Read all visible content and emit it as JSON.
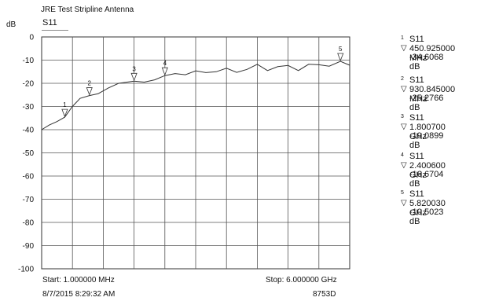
{
  "header": {
    "title": "JRE Test Stripline Antenna",
    "trace": "S11",
    "unit": "dB"
  },
  "footer": {
    "start": "Start: 1.000000 MHz",
    "stop": "Stop: 6.000000 GHz",
    "datetime": "8/7/2015 8:29:32 AM",
    "instrument": "8753D"
  },
  "markers": [
    {
      "num": "1",
      "trace": "S11",
      "freq": "450.925000 MHz",
      "value": "-34.6068 dB"
    },
    {
      "num": "2",
      "trace": "S11",
      "freq": "930.845000 MHz",
      "value": "-25.2766 dB"
    },
    {
      "num": "3",
      "trace": "S11",
      "freq": "1.800700 GHz",
      "value": "-19.0899 dB"
    },
    {
      "num": "4",
      "trace": "S11",
      "freq": "2.400600 GHz",
      "value": "-16.6704 dB"
    },
    {
      "num": "5",
      "trace": "S11",
      "freq": "5.820030 GHz",
      "value": "-10.5023 dB"
    }
  ],
  "chart_data": {
    "type": "line",
    "title": "JRE Test Stripline Antenna",
    "ylabel": "dB",
    "xlim": [
      0.001,
      6.0
    ],
    "ylim": [
      -100,
      0
    ],
    "x_unit": "GHz",
    "yticks": [
      "0",
      "-10",
      "-20",
      "-30",
      "-40",
      "-50",
      "-60",
      "-70",
      "-80",
      "-90",
      "-100"
    ],
    "grid": true,
    "series": [
      {
        "name": "S11",
        "color": "#333333",
        "x": [
          0.001,
          0.15,
          0.3,
          0.4509,
          0.6,
          0.75,
          0.9308,
          1.1,
          1.3,
          1.5,
          1.8007,
          2.0,
          2.2,
          2.4006,
          2.6,
          2.8,
          3.0,
          3.2,
          3.4,
          3.6,
          3.8,
          4.0,
          4.2,
          4.4,
          4.6,
          4.8,
          5.0,
          5.2,
          5.4,
          5.6,
          5.82,
          6.0
        ],
        "y": [
          -40.0,
          -38.0,
          -36.5,
          -34.6,
          -30.0,
          -26.5,
          -25.28,
          -24.5,
          -22.0,
          -20.0,
          -19.09,
          -19.5,
          -18.5,
          -16.67,
          -15.8,
          -16.3,
          -14.6,
          -15.4,
          -15.0,
          -13.5,
          -15.3,
          -14.0,
          -11.8,
          -14.5,
          -12.8,
          -12.3,
          -14.5,
          -11.8,
          -12.0,
          -12.6,
          -10.5,
          -12.2
        ]
      }
    ],
    "markers": [
      {
        "label": "1",
        "x": 0.450925,
        "y": -34.6068
      },
      {
        "label": "2",
        "x": 0.930845,
        "y": -25.2766
      },
      {
        "label": "3",
        "x": 1.8007,
        "y": -19.0899
      },
      {
        "label": "4",
        "x": 2.4006,
        "y": -16.6704
      },
      {
        "label": "5",
        "x": 5.82003,
        "y": -10.5023
      }
    ]
  }
}
